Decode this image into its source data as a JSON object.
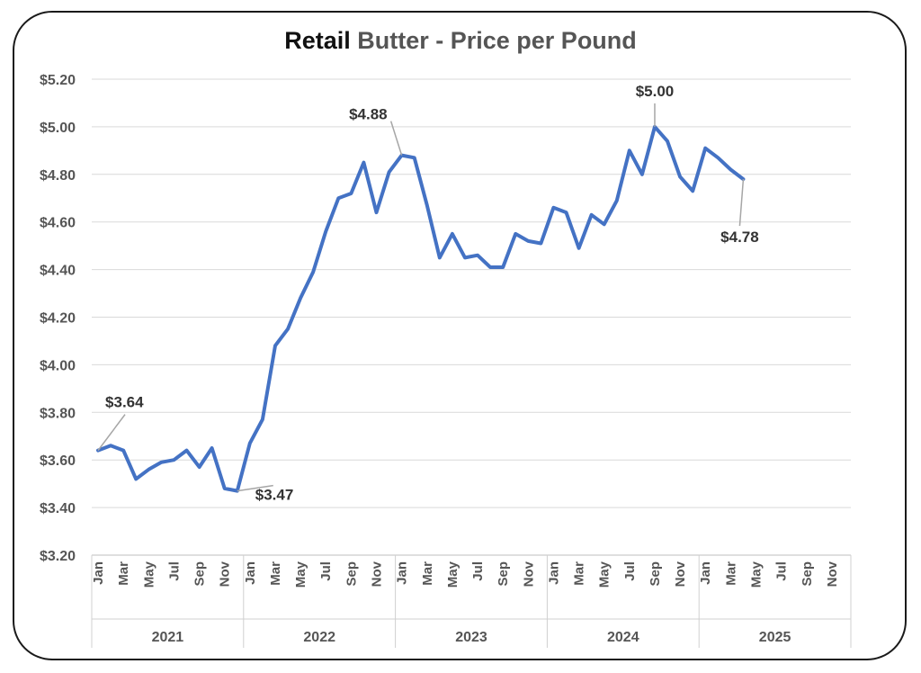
{
  "chart_data": {
    "type": "line",
    "title_bold": "Retail",
    "title_rest": "Butter - Price per Pound",
    "xlabel": "",
    "ylabel": "",
    "ylim": [
      3.2,
      5.2
    ],
    "y_ticks": [
      "$3.20",
      "$3.40",
      "$3.60",
      "$3.80",
      "$4.00",
      "$4.20",
      "$4.40",
      "$4.60",
      "$4.80",
      "$5.00",
      "$5.20"
    ],
    "month_tick_labels": [
      "Jan",
      "Mar",
      "May",
      "Jul",
      "Sep",
      "Nov"
    ],
    "years": [
      "2021",
      "2022",
      "2023",
      "2024",
      "2025"
    ],
    "grid": true,
    "legend": "none",
    "line_color": "#4472c4",
    "series": [
      {
        "values": [
          3.64,
          3.66,
          3.64,
          3.52,
          3.56,
          3.59,
          3.6,
          3.64,
          3.57,
          3.65,
          3.48,
          3.47,
          3.67,
          3.77,
          4.08,
          4.15,
          4.28,
          4.39,
          4.56,
          4.7,
          4.72,
          4.85,
          4.64,
          4.81,
          4.88,
          4.87,
          4.67,
          4.45,
          4.55,
          4.45,
          4.46,
          4.41,
          4.41,
          4.55,
          4.52,
          4.51,
          4.66,
          4.64,
          4.49,
          4.63,
          4.59,
          4.69,
          4.9,
          4.8,
          5.0,
          4.94,
          4.79,
          4.73,
          4.91,
          4.87,
          4.82,
          4.78
        ]
      }
    ],
    "annotations": [
      {
        "index": 0,
        "label": "$3.64"
      },
      {
        "index": 11,
        "label": "$3.47"
      },
      {
        "index": 24,
        "label": "$4.88"
      },
      {
        "index": 44,
        "label": "$5.00"
      },
      {
        "index": 51,
        "label": "$4.78"
      }
    ]
  }
}
